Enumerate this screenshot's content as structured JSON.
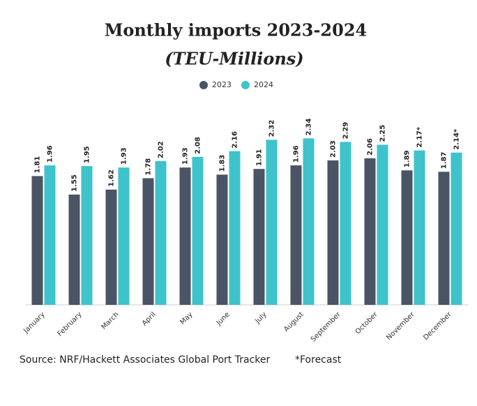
{
  "chart_data": {
    "type": "bar",
    "title": "Monthly imports 2023-2024",
    "subtitle": "(TEU-Millions)",
    "categories": [
      "January",
      "February",
      "March",
      "April",
      "May",
      "June",
      "July",
      "August",
      "September",
      "October",
      "November",
      "December"
    ],
    "series": [
      {
        "name": "2023",
        "color": "#4a5464",
        "values": [
          1.81,
          1.55,
          1.62,
          1.78,
          1.93,
          1.83,
          1.91,
          1.96,
          2.03,
          2.06,
          1.89,
          1.87
        ]
      },
      {
        "name": "2024",
        "color": "#3ec3cb",
        "values": [
          1.96,
          1.95,
          1.93,
          2.02,
          2.08,
          2.16,
          2.32,
          2.34,
          2.29,
          2.25,
          2.17,
          2.14
        ],
        "value_labels": [
          "1.96",
          "1.95",
          "1.93",
          "2.02",
          "2.08",
          "2.16",
          "2.32",
          "2.34",
          "2.29",
          "2.25",
          "2.17*",
          "2.14*"
        ]
      }
    ],
    "ylim": [
      0,
      2.5
    ],
    "source": "Source: NRF/Hackett Associates Global Port Tracker",
    "note": "*Forecast"
  }
}
